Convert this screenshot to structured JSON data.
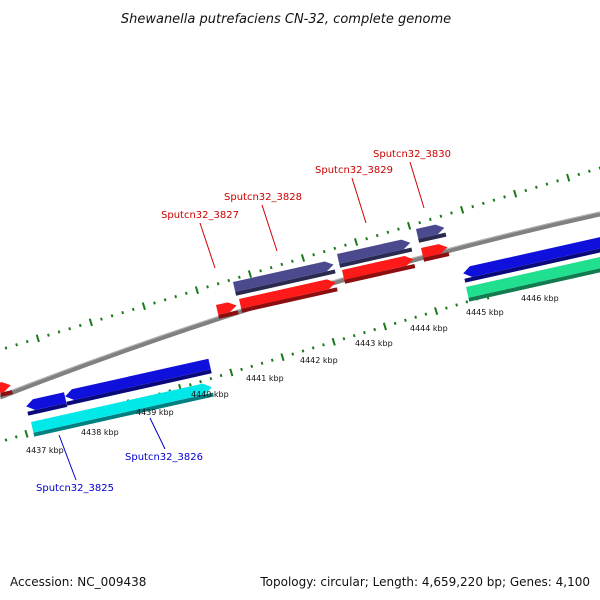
{
  "title": "Shewanella putrefaciens CN-32, complete genome",
  "footer": {
    "accession": "Accession: NC_009438",
    "summary": "Topology: circular; Length: 4,659,220 bp; Genes: 4,100"
  },
  "colors": {
    "backbone": "#808080",
    "tick": "#1a7a1a",
    "upper_label": "#cc0000",
    "lower_label": "#0000cc",
    "red_gene": "#ff1a1a",
    "slate_gene": "#4c4a8f",
    "blue_gene": "#1010dd",
    "cyan_gene": "#00e8e8",
    "green_gene": "#20e090"
  },
  "kbp_labels": [
    "4437 kbp",
    "4438 kbp",
    "4439 kbp",
    "4440 kbp",
    "4441 kbp",
    "4442 kbp",
    "4443 kbp",
    "4444 kbp",
    "4445 kbp",
    "4446 kbp"
  ],
  "gene_labels": [
    "Sputcn32_3825",
    "Sputcn32_3826",
    "Sputcn32_3827",
    "Sputcn32_3828",
    "Sputcn32_3829",
    "Sputcn32_3830"
  ]
}
